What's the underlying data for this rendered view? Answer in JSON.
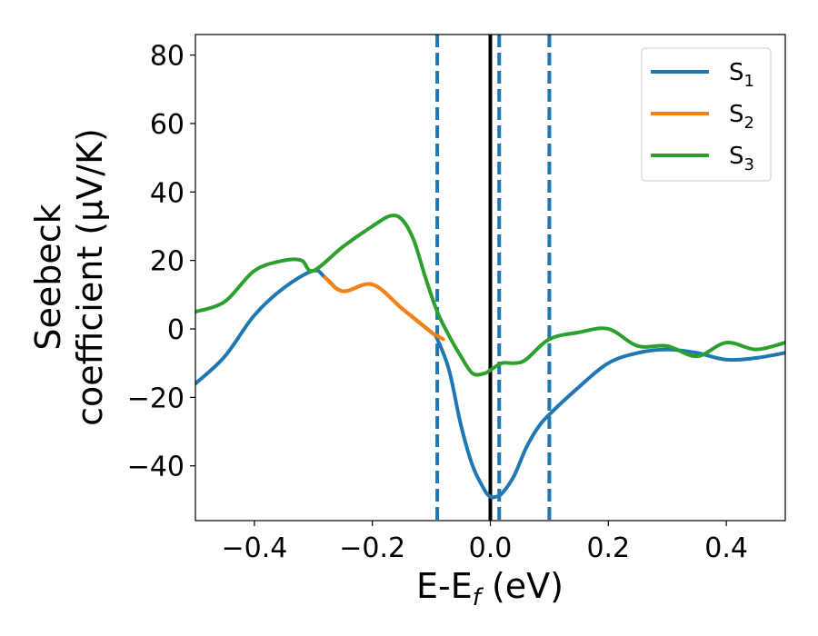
{
  "chart_data": {
    "type": "line",
    "xlabel_main": "E-E",
    "xlabel_sub": "f",
    "xlabel_unit": " (eV)",
    "ylabel_line1": "Seebeck",
    "ylabel_line2": "coefficient  (μV/K)",
    "xlim": [
      -0.5,
      0.5
    ],
    "ylim": [
      -56,
      86
    ],
    "xticks": [
      -0.4,
      -0.2,
      0.0,
      0.2,
      0.4
    ],
    "xtick_labels": [
      "−0.4",
      "−0.2",
      "0.0",
      "0.2",
      "0.4"
    ],
    "yticks": [
      -40,
      -20,
      0,
      20,
      40,
      60,
      80
    ],
    "ytick_labels": [
      "−40",
      "−20",
      "0",
      "20",
      "40",
      "60",
      "80"
    ],
    "grid": false,
    "legend_position": "top-right",
    "vlines": [
      {
        "x": -0.09,
        "color": "#1f77b4",
        "style": "dashed"
      },
      {
        "x": 0.0,
        "color": "#000000",
        "style": "solid"
      },
      {
        "x": 0.015,
        "color": "#1f77b4",
        "style": "dashed"
      },
      {
        "x": 0.1,
        "color": "#1f77b4",
        "style": "dashed"
      }
    ],
    "series": [
      {
        "name": "S",
        "sub": "1",
        "color": "#1f77b4",
        "x": [
          -0.5,
          -0.45,
          -0.4,
          -0.35,
          -0.3,
          -0.28,
          -0.25,
          -0.2,
          -0.15,
          -0.1,
          -0.09,
          -0.07,
          -0.05,
          -0.03,
          -0.01,
          0.0,
          0.01,
          0.02,
          0.04,
          0.06,
          0.08,
          0.1,
          0.15,
          0.2,
          0.25,
          0.3,
          0.35,
          0.4,
          0.45,
          0.5
        ],
        "y": [
          -16,
          -8,
          4,
          12,
          17,
          15,
          11,
          13,
          6,
          -1,
          -3,
          -12,
          -28,
          -40,
          -47,
          -49,
          -49,
          -48,
          -43,
          -35,
          -29,
          -25,
          -17,
          -10,
          -7,
          -6,
          -7,
          -9,
          -8.5,
          -7
        ]
      },
      {
        "name": "S",
        "sub": "2",
        "color": "#ff7f0e",
        "x": [
          -0.28,
          -0.25,
          -0.2,
          -0.15,
          -0.1,
          -0.09,
          -0.08
        ],
        "y": [
          15,
          11,
          13,
          6,
          -1,
          -2,
          -3
        ]
      },
      {
        "name": "S",
        "sub": "3",
        "color": "#2ca02c",
        "x": [
          -0.5,
          -0.45,
          -0.4,
          -0.35,
          -0.32,
          -0.3,
          -0.25,
          -0.2,
          -0.17,
          -0.15,
          -0.13,
          -0.11,
          -0.09,
          -0.07,
          -0.05,
          -0.03,
          -0.01,
          0.0,
          0.02,
          0.04,
          0.06,
          0.1,
          0.15,
          0.2,
          0.25,
          0.3,
          0.35,
          0.4,
          0.45,
          0.5
        ],
        "y": [
          5,
          8,
          17,
          20,
          20,
          17,
          24,
          30,
          33,
          32,
          26,
          15,
          5,
          -2,
          -8,
          -13,
          -13,
          -12,
          -10,
          -10,
          -9,
          -3,
          -1,
          0,
          -5,
          -5,
          -8,
          -4,
          -6,
          -4
        ]
      }
    ]
  }
}
